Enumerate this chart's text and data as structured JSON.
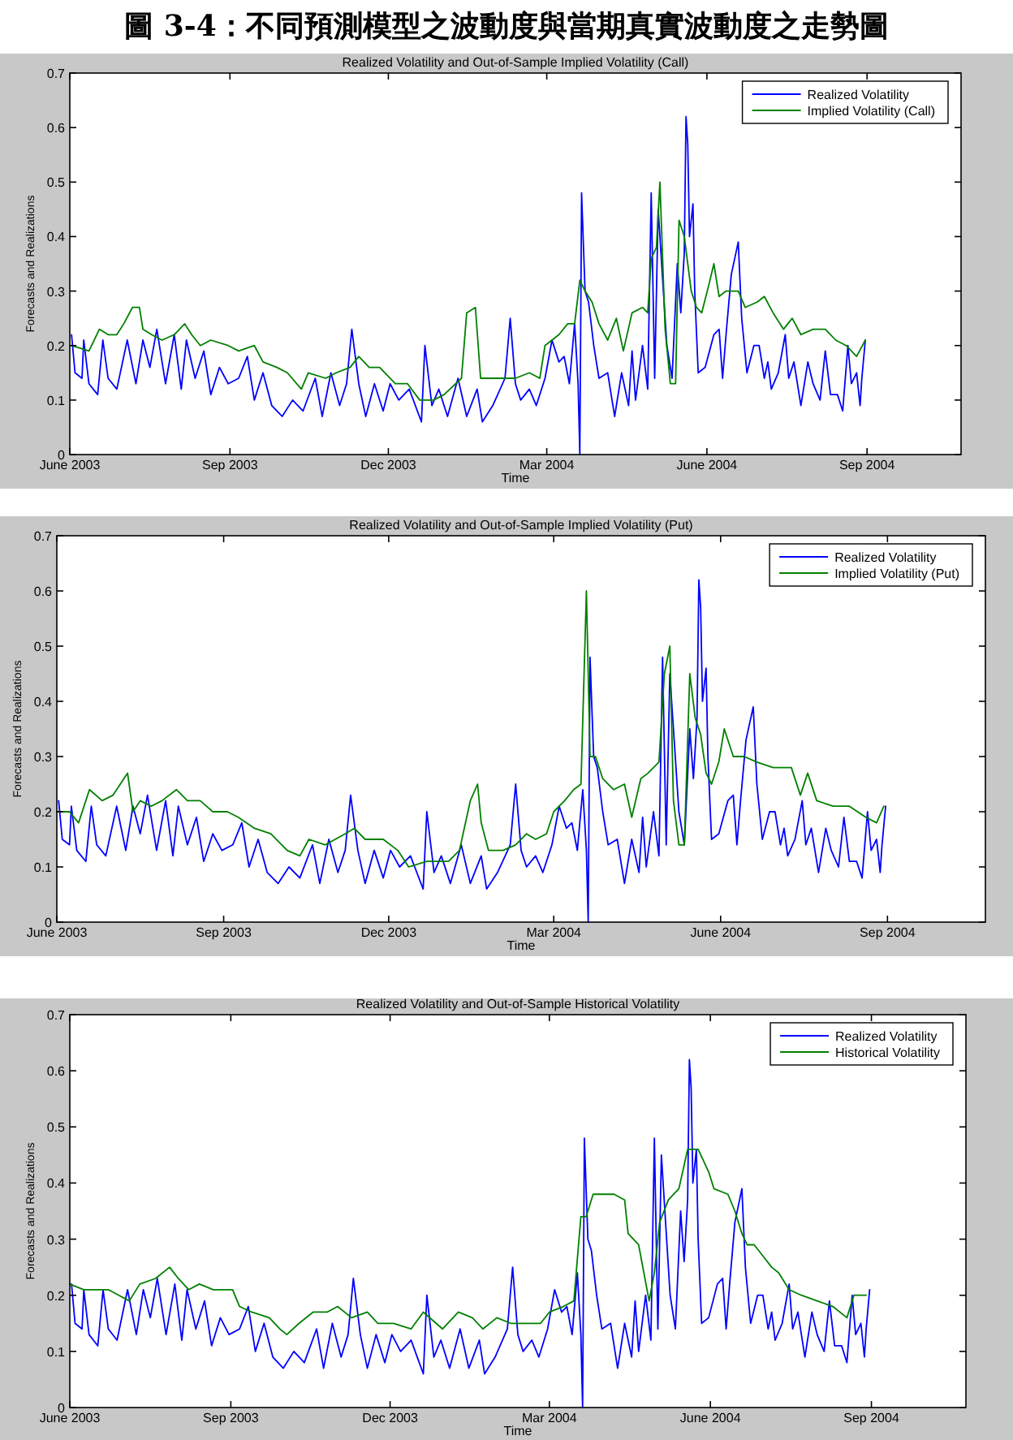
{
  "chart_data": [
    {
      "type": "line",
      "title": "Realized Volatility and Out-of-Sample Implied Volatility (Call)",
      "xlabel": "Time",
      "ylabel": "Forecasts and Realizations",
      "annotations": [
        "圖 3-4：不同預測模型之波動度與當期真實波動度之走勢圖"
      ],
      "xlim": [
        "2003-06-01",
        "2004-10-25"
      ],
      "ylim": [
        0,
        0.7
      ],
      "xticks": [
        {
          "value": "2003-06-01",
          "label": "June 2003"
        },
        {
          "value": "2003-09-01",
          "label": "Sep 2003"
        },
        {
          "value": "2003-12-01",
          "label": "Dec 2003"
        },
        {
          "value": "2004-03-01",
          "label": "Mar 2004"
        },
        {
          "value": "2004-06-01",
          "label": "June 2004"
        },
        {
          "value": "2004-09-01",
          "label": "Sep 2004"
        }
      ],
      "yticks": [
        0,
        0.1,
        0.2,
        0.3,
        0.4,
        0.5,
        0.6,
        0.7
      ],
      "legend": "top right",
      "series": [
        {
          "name": "Realized Volatility",
          "color": "#0000ff",
          "x": [
            "2003-06-02",
            "2003-06-04",
            "2003-06-08",
            "2003-06-09",
            "2003-06-12",
            "2003-06-17",
            "2003-06-20",
            "2003-06-23",
            "2003-06-28",
            "2003-07-04",
            "2003-07-09",
            "2003-07-13",
            "2003-07-17",
            "2003-07-21",
            "2003-07-26",
            "2003-07-31",
            "2003-08-04",
            "2003-08-07",
            "2003-08-12",
            "2003-08-17",
            "2003-08-21",
            "2003-08-26",
            "2003-08-31",
            "2003-09-06",
            "2003-09-11",
            "2003-09-15",
            "2003-09-20",
            "2003-09-25",
            "2003-10-01",
            "2003-10-07",
            "2003-10-13",
            "2003-10-20",
            "2003-10-24",
            "2003-10-29",
            "2003-11-03",
            "2003-11-07",
            "2003-11-10",
            "2003-11-14",
            "2003-11-18",
            "2003-11-23",
            "2003-11-28",
            "2003-12-02",
            "2003-12-07",
            "2003-12-13",
            "2003-12-20",
            "2003-12-22",
            "2003-12-26",
            "2003-12-30",
            "2004-01-04",
            "2004-01-10",
            "2004-01-15",
            "2004-01-21",
            "2004-01-24",
            "2004-01-30",
            "2004-02-06",
            "2004-02-09",
            "2004-02-12",
            "2004-02-15",
            "2004-02-20",
            "2004-02-24",
            "2004-02-29",
            "2004-03-04",
            "2004-03-08",
            "2004-03-11",
            "2004-03-14",
            "2004-03-17",
            "2004-03-19",
            "2004-03-20",
            "2004-03-21",
            "2004-03-23",
            "2004-03-25",
            "2004-03-28",
            "2004-03-31",
            "2004-04-05",
            "2004-04-09",
            "2004-04-13",
            "2004-04-17",
            "2004-04-19",
            "2004-04-21",
            "2004-04-25",
            "2004-04-28",
            "2004-04-30",
            "2004-05-02",
            "2004-05-04",
            "2004-05-07",
            "2004-05-09",
            "2004-05-12",
            "2004-05-15",
            "2004-05-17",
            "2004-05-19",
            "2004-05-20",
            "2004-05-21",
            "2004-05-22",
            "2004-05-24",
            "2004-05-25",
            "2004-05-27",
            "2004-05-31",
            "2004-06-05",
            "2004-06-08",
            "2004-06-10",
            "2004-06-12",
            "2004-06-15",
            "2004-06-19",
            "2004-06-21",
            "2004-06-24",
            "2004-06-28",
            "2004-07-01",
            "2004-07-04",
            "2004-07-06",
            "2004-07-08",
            "2004-07-12",
            "2004-07-16",
            "2004-07-18",
            "2004-07-21",
            "2004-07-25",
            "2004-07-29",
            "2004-08-01",
            "2004-08-05",
            "2004-08-08",
            "2004-08-11",
            "2004-08-15",
            "2004-08-18",
            "2004-08-21",
            "2004-08-23",
            "2004-08-26",
            "2004-08-28",
            "2004-08-29",
            "2004-08-31"
          ],
          "values": [
            0.22,
            0.15,
            0.14,
            0.21,
            0.13,
            0.11,
            0.21,
            0.14,
            0.12,
            0.21,
            0.13,
            0.21,
            0.16,
            0.23,
            0.13,
            0.22,
            0.12,
            0.21,
            0.14,
            0.19,
            0.11,
            0.16,
            0.13,
            0.14,
            0.18,
            0.1,
            0.15,
            0.09,
            0.07,
            0.1,
            0.08,
            0.14,
            0.07,
            0.15,
            0.09,
            0.13,
            0.23,
            0.13,
            0.07,
            0.13,
            0.08,
            0.13,
            0.1,
            0.12,
            0.06,
            0.2,
            0.09,
            0.12,
            0.07,
            0.14,
            0.07,
            0.12,
            0.06,
            0.09,
            0.14,
            0.25,
            0.13,
            0.1,
            0.12,
            0.09,
            0.14,
            0.21,
            0.17,
            0.18,
            0.13,
            0.24,
            0.13,
            0.0,
            0.48,
            0.3,
            0.28,
            0.2,
            0.14,
            0.15,
            0.07,
            0.15,
            0.09,
            0.19,
            0.1,
            0.2,
            0.12,
            0.48,
            0.14,
            0.45,
            0.3,
            0.2,
            0.14,
            0.35,
            0.26,
            0.37,
            0.62,
            0.57,
            0.4,
            0.46,
            0.3,
            0.15,
            0.16,
            0.22,
            0.23,
            0.14,
            0.22,
            0.33,
            0.39,
            0.25,
            0.15,
            0.2,
            0.2,
            0.14,
            0.17,
            0.12,
            0.15,
            0.22,
            0.14,
            0.17,
            0.09,
            0.17,
            0.13,
            0.1,
            0.19,
            0.11,
            0.11,
            0.08,
            0.2,
            0.13,
            0.15,
            0.09,
            0.14,
            0.21
          ]
        },
        {
          "name": "Implied Volatility (Call)",
          "color": "#008000",
          "x": [
            "2003-06-02",
            "2003-06-12",
            "2003-06-18",
            "2003-06-23",
            "2003-06-28",
            "2003-07-02",
            "2003-07-07",
            "2003-07-11",
            "2003-07-13",
            "2003-07-18",
            "2003-07-24",
            "2003-07-31",
            "2003-08-06",
            "2003-08-10",
            "2003-08-15",
            "2003-08-21",
            "2003-08-31",
            "2003-09-06",
            "2003-09-15",
            "2003-09-20",
            "2003-09-28",
            "2003-10-04",
            "2003-10-12",
            "2003-10-16",
            "2003-10-26",
            "2003-11-01",
            "2003-11-09",
            "2003-11-14",
            "2003-11-20",
            "2003-11-26",
            "2003-12-05",
            "2003-12-12",
            "2003-12-19",
            "2003-12-27",
            "2004-01-02",
            "2004-01-12",
            "2004-01-15",
            "2004-01-20",
            "2004-01-23",
            "2004-01-27",
            "2004-02-03",
            "2004-02-12",
            "2004-02-20",
            "2004-02-26",
            "2004-02-29",
            "2004-03-08",
            "2004-03-13",
            "2004-03-17",
            "2004-03-20",
            "2004-03-23",
            "2004-03-27",
            "2004-03-31",
            "2004-04-05",
            "2004-04-10",
            "2004-04-14",
            "2004-04-19",
            "2004-04-25",
            "2004-04-28",
            "2004-04-30",
            "2004-05-03",
            "2004-05-05",
            "2004-05-08",
            "2004-05-11",
            "2004-05-14",
            "2004-05-16",
            "2004-05-19",
            "2004-05-23",
            "2004-05-26",
            "2004-05-29",
            "2004-06-02",
            "2004-06-05",
            "2004-06-08",
            "2004-06-12",
            "2004-06-19",
            "2004-06-23",
            "2004-06-30",
            "2004-07-04",
            "2004-07-09",
            "2004-07-15",
            "2004-07-20",
            "2004-07-25",
            "2004-08-01",
            "2004-08-08",
            "2004-08-14",
            "2004-08-20",
            "2004-08-26",
            "2004-08-31"
          ],
          "values": [
            0.2,
            0.19,
            0.23,
            0.22,
            0.22,
            0.24,
            0.27,
            0.27,
            0.23,
            0.22,
            0.21,
            0.22,
            0.24,
            0.22,
            0.2,
            0.21,
            0.2,
            0.19,
            0.2,
            0.17,
            0.16,
            0.15,
            0.12,
            0.15,
            0.14,
            0.15,
            0.16,
            0.18,
            0.16,
            0.16,
            0.13,
            0.13,
            0.1,
            0.1,
            0.11,
            0.14,
            0.26,
            0.27,
            0.14,
            0.14,
            0.14,
            0.14,
            0.15,
            0.14,
            0.2,
            0.22,
            0.24,
            0.24,
            0.32,
            0.3,
            0.28,
            0.24,
            0.21,
            0.25,
            0.19,
            0.26,
            0.27,
            0.26,
            0.36,
            0.38,
            0.5,
            0.23,
            0.13,
            0.13,
            0.43,
            0.4,
            0.3,
            0.27,
            0.26,
            0.31,
            0.35,
            0.29,
            0.3,
            0.3,
            0.27,
            0.28,
            0.29,
            0.26,
            0.23,
            0.25,
            0.22,
            0.23,
            0.23,
            0.21,
            0.2,
            0.18,
            0.21
          ]
        }
      ]
    },
    {
      "type": "line",
      "title": "Realized Volatility and Out-of-Sample Implied Volatility (Put)",
      "xlabel": "Time",
      "ylabel": "Forecasts and Realizations",
      "xlim": [
        "2003-06-01",
        "2004-10-25"
      ],
      "ylim": [
        0,
        0.7
      ],
      "xticks": [
        {
          "value": "2003-06-01",
          "label": "June 2003"
        },
        {
          "value": "2003-09-01",
          "label": "Sep 2003"
        },
        {
          "value": "2003-12-01",
          "label": "Dec 2003"
        },
        {
          "value": "2004-03-01",
          "label": "Mar 2004"
        },
        {
          "value": "2004-06-01",
          "label": "June 2004"
        },
        {
          "value": "2004-09-01",
          "label": "Sep 2004"
        }
      ],
      "yticks": [
        0,
        0.1,
        0.2,
        0.3,
        0.4,
        0.5,
        0.6,
        0.7
      ],
      "legend": "top right",
      "series": [
        {
          "name": "Realized Volatility",
          "color": "#0000ff",
          "x": [
            "2003-06-02",
            "2003-06-04",
            "2003-06-08",
            "2003-06-09",
            "2003-06-12",
            "2003-06-17",
            "2003-06-20",
            "2003-06-23",
            "2003-06-28",
            "2003-07-04",
            "2003-07-09",
            "2003-07-13",
            "2003-07-17",
            "2003-07-21",
            "2003-07-26",
            "2003-07-31",
            "2003-08-04",
            "2003-08-07",
            "2003-08-12",
            "2003-08-17",
            "2003-08-21",
            "2003-08-26",
            "2003-08-31",
            "2003-09-06",
            "2003-09-11",
            "2003-09-15",
            "2003-09-20",
            "2003-09-25",
            "2003-10-01",
            "2003-10-07",
            "2003-10-13",
            "2003-10-20",
            "2003-10-24",
            "2003-10-29",
            "2003-11-03",
            "2003-11-07",
            "2003-11-10",
            "2003-11-14",
            "2003-11-18",
            "2003-11-23",
            "2003-11-28",
            "2003-12-02",
            "2003-12-07",
            "2003-12-13",
            "2003-12-20",
            "2003-12-22",
            "2003-12-26",
            "2003-12-30",
            "2004-01-04",
            "2004-01-10",
            "2004-01-15",
            "2004-01-21",
            "2004-01-24",
            "2004-01-30",
            "2004-02-06",
            "2004-02-09",
            "2004-02-12",
            "2004-02-15",
            "2004-02-20",
            "2004-02-24",
            "2004-02-29",
            "2004-03-04",
            "2004-03-08",
            "2004-03-11",
            "2004-03-14",
            "2004-03-17",
            "2004-03-19",
            "2004-03-20",
            "2004-03-21",
            "2004-03-23",
            "2004-03-25",
            "2004-03-28",
            "2004-03-31",
            "2004-04-05",
            "2004-04-09",
            "2004-04-13",
            "2004-04-17",
            "2004-04-19",
            "2004-04-21",
            "2004-04-25",
            "2004-04-28",
            "2004-04-30",
            "2004-05-02",
            "2004-05-04",
            "2004-05-07",
            "2004-05-09",
            "2004-05-12",
            "2004-05-15",
            "2004-05-17",
            "2004-05-19",
            "2004-05-20",
            "2004-05-21",
            "2004-05-22",
            "2004-05-24",
            "2004-05-25",
            "2004-05-27",
            "2004-05-31",
            "2004-06-05",
            "2004-06-08",
            "2004-06-10",
            "2004-06-12",
            "2004-06-15",
            "2004-06-19",
            "2004-06-21",
            "2004-06-24",
            "2004-06-28",
            "2004-07-01",
            "2004-07-04",
            "2004-07-06",
            "2004-07-08",
            "2004-07-12",
            "2004-07-16",
            "2004-07-18",
            "2004-07-21",
            "2004-07-25",
            "2004-07-29",
            "2004-08-01",
            "2004-08-05",
            "2004-08-08",
            "2004-08-11",
            "2004-08-15",
            "2004-08-18",
            "2004-08-21",
            "2004-08-23",
            "2004-08-26",
            "2004-08-28",
            "2004-08-29",
            "2004-08-31"
          ],
          "values": [
            0.22,
            0.15,
            0.14,
            0.21,
            0.13,
            0.11,
            0.21,
            0.14,
            0.12,
            0.21,
            0.13,
            0.21,
            0.16,
            0.23,
            0.13,
            0.22,
            0.12,
            0.21,
            0.14,
            0.19,
            0.11,
            0.16,
            0.13,
            0.14,
            0.18,
            0.1,
            0.15,
            0.09,
            0.07,
            0.1,
            0.08,
            0.14,
            0.07,
            0.15,
            0.09,
            0.13,
            0.23,
            0.13,
            0.07,
            0.13,
            0.08,
            0.13,
            0.1,
            0.12,
            0.06,
            0.2,
            0.09,
            0.12,
            0.07,
            0.14,
            0.07,
            0.12,
            0.06,
            0.09,
            0.14,
            0.25,
            0.13,
            0.1,
            0.12,
            0.09,
            0.14,
            0.21,
            0.17,
            0.18,
            0.13,
            0.24,
            0.13,
            0.0,
            0.48,
            0.3,
            0.28,
            0.2,
            0.14,
            0.15,
            0.07,
            0.15,
            0.09,
            0.19,
            0.1,
            0.2,
            0.12,
            0.48,
            0.14,
            0.45,
            0.3,
            0.2,
            0.14,
            0.35,
            0.26,
            0.37,
            0.62,
            0.57,
            0.4,
            0.46,
            0.3,
            0.15,
            0.16,
            0.22,
            0.23,
            0.14,
            0.22,
            0.33,
            0.39,
            0.25,
            0.15,
            0.2,
            0.2,
            0.14,
            0.17,
            0.12,
            0.15,
            0.22,
            0.14,
            0.17,
            0.09,
            0.17,
            0.13,
            0.1,
            0.19,
            0.11,
            0.11,
            0.08,
            0.2,
            0.13,
            0.15,
            0.09,
            0.14,
            0.21
          ]
        },
        {
          "name": "Implied Volatility (Put)",
          "color": "#008000",
          "x": [
            "2003-06-01",
            "2003-06-08",
            "2003-06-13",
            "2003-06-19",
            "2003-06-26",
            "2003-07-02",
            "2003-07-10",
            "2003-07-13",
            "2003-07-17",
            "2003-07-23",
            "2003-07-29",
            "2003-08-06",
            "2003-08-12",
            "2003-08-19",
            "2003-08-26",
            "2003-09-03",
            "2003-09-09",
            "2003-09-18",
            "2003-09-27",
            "2003-10-06",
            "2003-10-13",
            "2003-10-18",
            "2003-10-27",
            "2003-11-07",
            "2003-11-12",
            "2003-11-18",
            "2003-11-28",
            "2003-12-06",
            "2003-12-12",
            "2003-12-22",
            "2004-01-03",
            "2004-01-09",
            "2004-01-15",
            "2004-01-19",
            "2004-01-21",
            "2004-01-25",
            "2004-02-02",
            "2004-02-09",
            "2004-02-15",
            "2004-02-20",
            "2004-02-26",
            "2004-03-01",
            "2004-03-07",
            "2004-03-12",
            "2004-03-16",
            "2004-03-19",
            "2004-03-21",
            "2004-03-24",
            "2004-03-28",
            "2004-04-03",
            "2004-04-09",
            "2004-04-13",
            "2004-04-18",
            "2004-04-22",
            "2004-04-28",
            "2004-05-01",
            "2004-05-04",
            "2004-05-06",
            "2004-05-09",
            "2004-05-12",
            "2004-05-15",
            "2004-05-18",
            "2004-05-21",
            "2004-05-24",
            "2004-05-27",
            "2004-05-31",
            "2004-06-03",
            "2004-06-08",
            "2004-06-14",
            "2004-06-21",
            "2004-06-30",
            "2004-07-10",
            "2004-07-15",
            "2004-07-19",
            "2004-07-24",
            "2004-08-02",
            "2004-08-11",
            "2004-08-20",
            "2004-08-26",
            "2004-08-30"
          ],
          "values": [
            0.2,
            0.2,
            0.18,
            0.24,
            0.22,
            0.23,
            0.27,
            0.2,
            0.22,
            0.21,
            0.22,
            0.24,
            0.22,
            0.22,
            0.2,
            0.2,
            0.19,
            0.17,
            0.16,
            0.13,
            0.12,
            0.15,
            0.14,
            0.16,
            0.17,
            0.15,
            0.15,
            0.13,
            0.1,
            0.11,
            0.11,
            0.13,
            0.22,
            0.25,
            0.18,
            0.13,
            0.13,
            0.14,
            0.16,
            0.15,
            0.16,
            0.2,
            0.22,
            0.24,
            0.25,
            0.6,
            0.3,
            0.3,
            0.26,
            0.24,
            0.25,
            0.19,
            0.26,
            0.27,
            0.29,
            0.45,
            0.5,
            0.22,
            0.14,
            0.14,
            0.45,
            0.37,
            0.34,
            0.27,
            0.25,
            0.29,
            0.35,
            0.3,
            0.3,
            0.29,
            0.28,
            0.28,
            0.23,
            0.27,
            0.22,
            0.21,
            0.21,
            0.19,
            0.18,
            0.21
          ]
        }
      ]
    },
    {
      "type": "line",
      "title": "Realized Volatility and Out-of-Sample Historical Volatility",
      "xlabel": "Time",
      "ylabel": "Forecasts and Realizations",
      "xlim": [
        "2003-06-01",
        "2004-10-25"
      ],
      "ylim": [
        0,
        0.7
      ],
      "xticks": [
        {
          "value": "2003-06-01",
          "label": "June 2003"
        },
        {
          "value": "2003-09-01",
          "label": "Sep 2003"
        },
        {
          "value": "2003-12-01",
          "label": "Dec 2003"
        },
        {
          "value": "2004-03-01",
          "label": "Mar 2004"
        },
        {
          "value": "2004-06-01",
          "label": "June 2004"
        },
        {
          "value": "2004-09-01",
          "label": "Sep 2004"
        }
      ],
      "yticks": [
        0,
        0.1,
        0.2,
        0.3,
        0.4,
        0.5,
        0.6,
        0.7
      ],
      "legend": "top right",
      "series": [
        {
          "name": "Realized Volatility",
          "color": "#0000ff",
          "x": [
            "2003-06-02",
            "2003-06-04",
            "2003-06-08",
            "2003-06-09",
            "2003-06-12",
            "2003-06-17",
            "2003-06-20",
            "2003-06-23",
            "2003-06-28",
            "2003-07-04",
            "2003-07-09",
            "2003-07-13",
            "2003-07-17",
            "2003-07-21",
            "2003-07-26",
            "2003-07-31",
            "2003-08-04",
            "2003-08-07",
            "2003-08-12",
            "2003-08-17",
            "2003-08-21",
            "2003-08-26",
            "2003-08-31",
            "2003-09-06",
            "2003-09-11",
            "2003-09-15",
            "2003-09-20",
            "2003-09-25",
            "2003-10-01",
            "2003-10-07",
            "2003-10-13",
            "2003-10-20",
            "2003-10-24",
            "2003-10-29",
            "2003-11-03",
            "2003-11-07",
            "2003-11-10",
            "2003-11-14",
            "2003-11-18",
            "2003-11-23",
            "2003-11-28",
            "2003-12-02",
            "2003-12-07",
            "2003-12-13",
            "2003-12-20",
            "2003-12-22",
            "2003-12-26",
            "2003-12-30",
            "2004-01-04",
            "2004-01-10",
            "2004-01-15",
            "2004-01-21",
            "2004-01-24",
            "2004-01-30",
            "2004-02-06",
            "2004-02-09",
            "2004-02-12",
            "2004-02-15",
            "2004-02-20",
            "2004-02-24",
            "2004-02-29",
            "2004-03-04",
            "2004-03-08",
            "2004-03-11",
            "2004-03-14",
            "2004-03-17",
            "2004-03-19",
            "2004-03-20",
            "2004-03-21",
            "2004-03-23",
            "2004-03-25",
            "2004-03-28",
            "2004-03-31",
            "2004-04-05",
            "2004-04-09",
            "2004-04-13",
            "2004-04-17",
            "2004-04-19",
            "2004-04-21",
            "2004-04-25",
            "2004-04-28",
            "2004-04-30",
            "2004-05-02",
            "2004-05-04",
            "2004-05-07",
            "2004-05-09",
            "2004-05-12",
            "2004-05-15",
            "2004-05-17",
            "2004-05-19",
            "2004-05-20",
            "2004-05-21",
            "2004-05-22",
            "2004-05-24",
            "2004-05-25",
            "2004-05-27",
            "2004-05-31",
            "2004-06-05",
            "2004-06-08",
            "2004-06-10",
            "2004-06-12",
            "2004-06-15",
            "2004-06-19",
            "2004-06-21",
            "2004-06-24",
            "2004-06-28",
            "2004-07-01",
            "2004-07-04",
            "2004-07-06",
            "2004-07-08",
            "2004-07-12",
            "2004-07-16",
            "2004-07-18",
            "2004-07-21",
            "2004-07-25",
            "2004-07-29",
            "2004-08-01",
            "2004-08-05",
            "2004-08-08",
            "2004-08-11",
            "2004-08-15",
            "2004-08-18",
            "2004-08-21",
            "2004-08-23",
            "2004-08-26",
            "2004-08-28",
            "2004-08-29",
            "2004-08-31"
          ],
          "values": [
            0.22,
            0.15,
            0.14,
            0.21,
            0.13,
            0.11,
            0.21,
            0.14,
            0.12,
            0.21,
            0.13,
            0.21,
            0.16,
            0.23,
            0.13,
            0.22,
            0.12,
            0.21,
            0.14,
            0.19,
            0.11,
            0.16,
            0.13,
            0.14,
            0.18,
            0.1,
            0.15,
            0.09,
            0.07,
            0.1,
            0.08,
            0.14,
            0.07,
            0.15,
            0.09,
            0.13,
            0.23,
            0.13,
            0.07,
            0.13,
            0.08,
            0.13,
            0.1,
            0.12,
            0.06,
            0.2,
            0.09,
            0.12,
            0.07,
            0.14,
            0.07,
            0.12,
            0.06,
            0.09,
            0.14,
            0.25,
            0.13,
            0.1,
            0.12,
            0.09,
            0.14,
            0.21,
            0.17,
            0.18,
            0.13,
            0.24,
            0.13,
            0.0,
            0.48,
            0.3,
            0.28,
            0.2,
            0.14,
            0.15,
            0.07,
            0.15,
            0.09,
            0.19,
            0.1,
            0.2,
            0.12,
            0.48,
            0.14,
            0.45,
            0.3,
            0.2,
            0.14,
            0.35,
            0.26,
            0.37,
            0.62,
            0.57,
            0.4,
            0.46,
            0.3,
            0.15,
            0.16,
            0.22,
            0.23,
            0.14,
            0.22,
            0.33,
            0.39,
            0.25,
            0.15,
            0.2,
            0.2,
            0.14,
            0.17,
            0.12,
            0.15,
            0.22,
            0.14,
            0.17,
            0.09,
            0.17,
            0.13,
            0.1,
            0.19,
            0.11,
            0.11,
            0.08,
            0.2,
            0.13,
            0.15,
            0.09,
            0.14,
            0.21
          ]
        },
        {
          "name": "Historical Volatility",
          "color": "#008000",
          "x": [
            "2003-06-01",
            "2003-06-09",
            "2003-06-15",
            "2003-06-23",
            "2003-06-29",
            "2003-07-05",
            "2003-07-11",
            "2003-07-20",
            "2003-07-28",
            "2003-08-02",
            "2003-08-08",
            "2003-08-14",
            "2003-08-22",
            "2003-09-02",
            "2003-09-06",
            "2003-09-13",
            "2003-09-23",
            "2003-09-29",
            "2003-10-03",
            "2003-10-10",
            "2003-10-18",
            "2003-10-26",
            "2003-11-01",
            "2003-11-09",
            "2003-11-18",
            "2003-11-24",
            "2003-12-03",
            "2003-12-13",
            "2003-12-20",
            "2003-12-31",
            "2004-01-09",
            "2004-01-17",
            "2004-01-23",
            "2004-01-31",
            "2004-02-08",
            "2004-02-19",
            "2004-02-25",
            "2004-03-01",
            "2004-03-09",
            "2004-03-15",
            "2004-03-19",
            "2004-03-22",
            "2004-03-26",
            "2004-03-30",
            "2004-04-07",
            "2004-04-13",
            "2004-04-15",
            "2004-04-21",
            "2004-04-27",
            "2004-04-30",
            "2004-05-03",
            "2004-05-08",
            "2004-05-14",
            "2004-05-19",
            "2004-05-25",
            "2004-05-31",
            "2004-06-03",
            "2004-06-11",
            "2004-06-15",
            "2004-06-19",
            "2004-06-22",
            "2004-06-26",
            "2004-07-01",
            "2004-07-06",
            "2004-07-10",
            "2004-07-16",
            "2004-07-23",
            "2004-08-01",
            "2004-08-10",
            "2004-08-18",
            "2004-08-22",
            "2004-08-29"
          ],
          "values": [
            0.22,
            0.21,
            0.21,
            0.21,
            0.2,
            0.19,
            0.22,
            0.23,
            0.25,
            0.23,
            0.21,
            0.22,
            0.21,
            0.21,
            0.18,
            0.17,
            0.16,
            0.14,
            0.13,
            0.15,
            0.17,
            0.17,
            0.18,
            0.16,
            0.17,
            0.15,
            0.15,
            0.14,
            0.17,
            0.14,
            0.17,
            0.16,
            0.14,
            0.16,
            0.15,
            0.15,
            0.15,
            0.17,
            0.18,
            0.19,
            0.34,
            0.34,
            0.38,
            0.38,
            0.38,
            0.37,
            0.31,
            0.29,
            0.19,
            0.24,
            0.33,
            0.37,
            0.39,
            0.46,
            0.46,
            0.42,
            0.39,
            0.38,
            0.35,
            0.31,
            0.29,
            0.29,
            0.27,
            0.25,
            0.24,
            0.21,
            0.2,
            0.19,
            0.18,
            0.16,
            0.2,
            0.2
          ]
        }
      ]
    }
  ]
}
